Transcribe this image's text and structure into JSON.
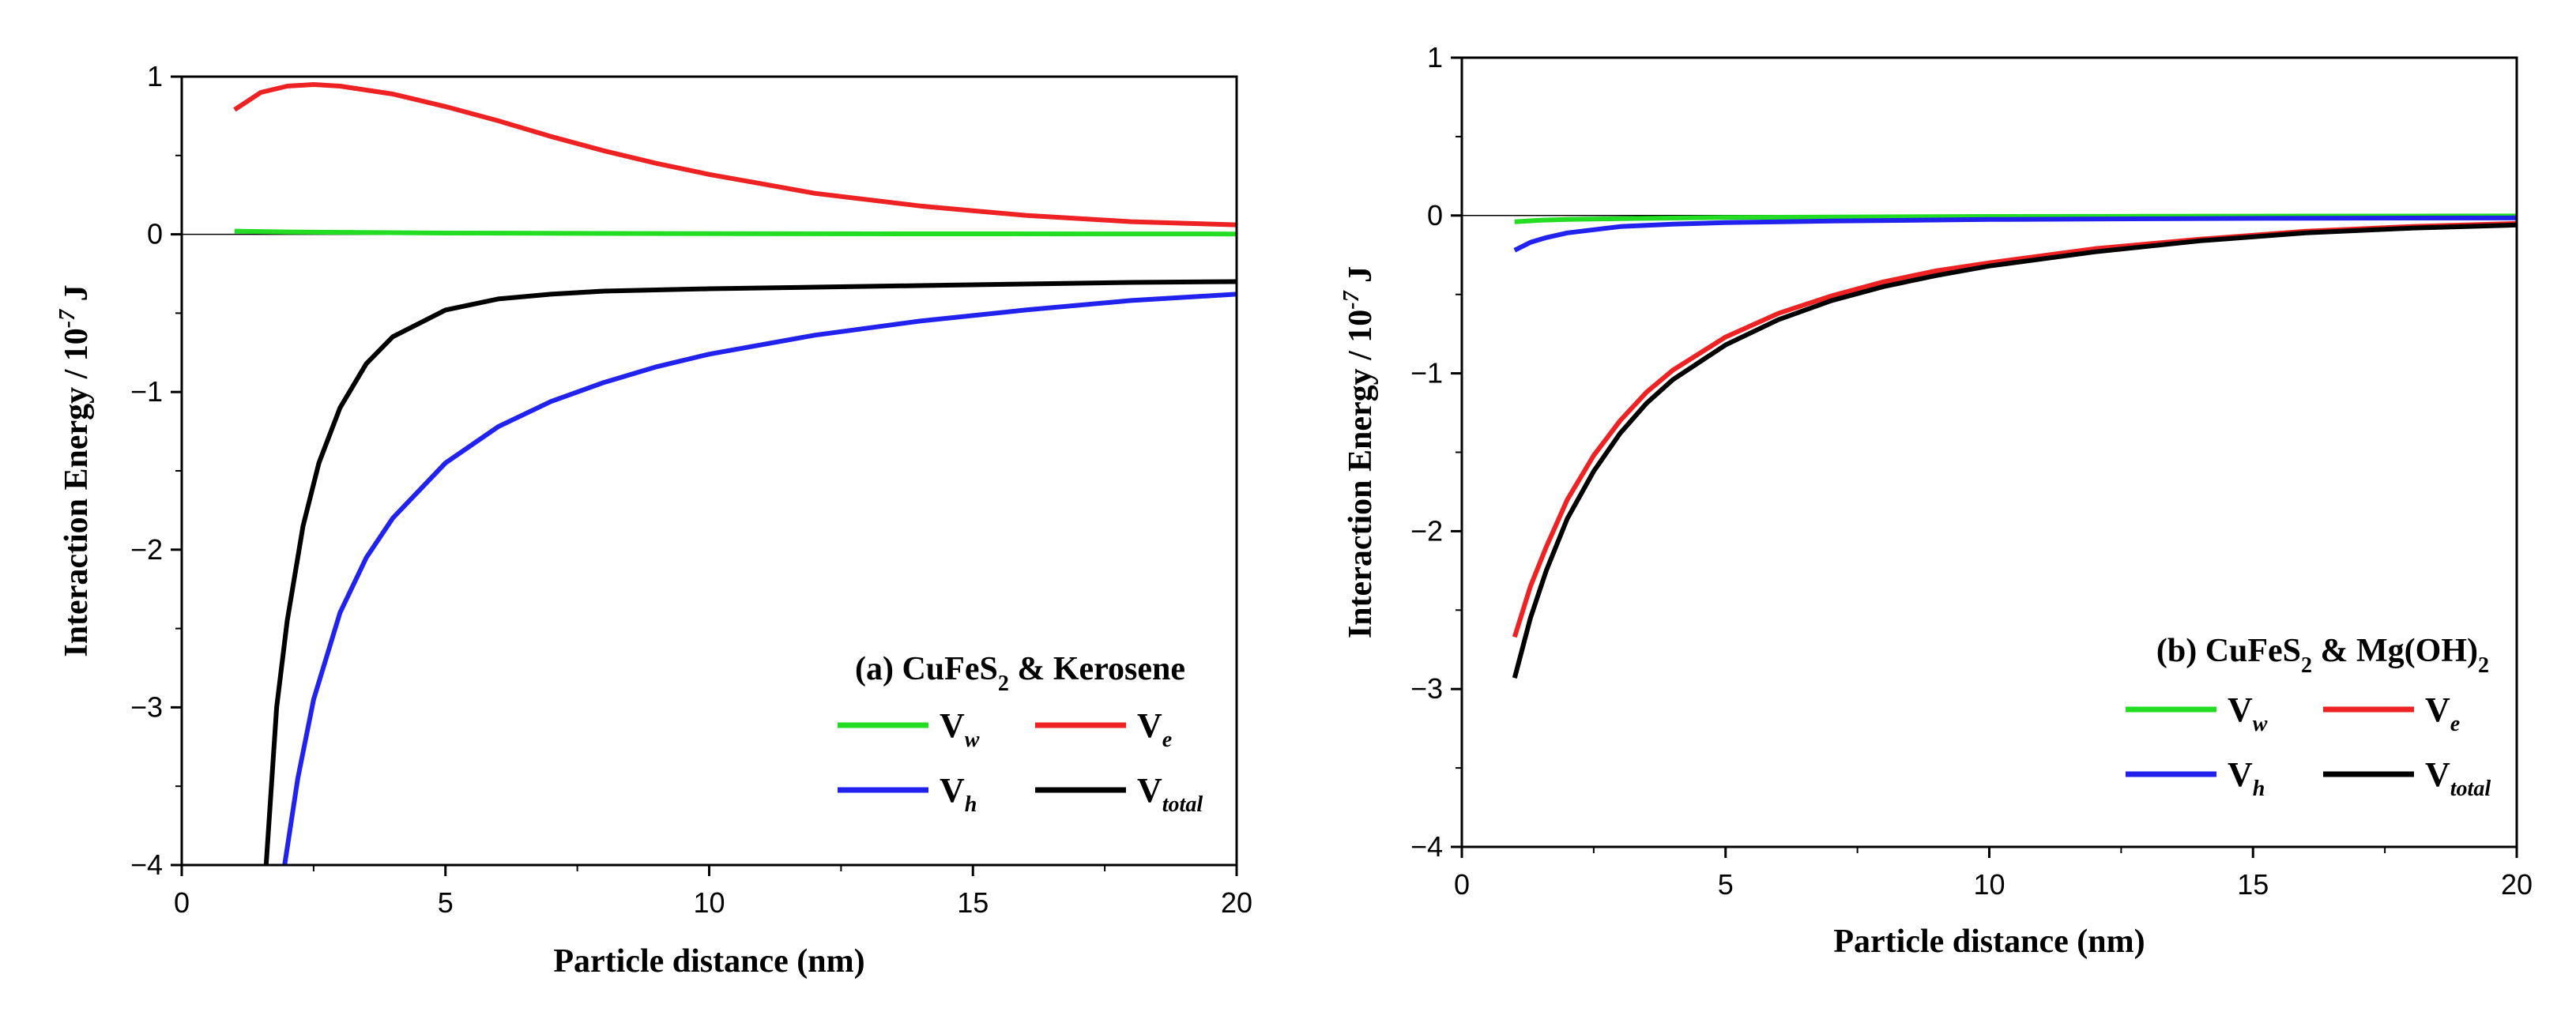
{
  "chart_data": [
    {
      "type": "line",
      "title": "(a) CuFeS",
      "title_sub": "2",
      "title_suffix": " & Kerosene",
      "xlabel": "Particle distance (nm)",
      "ylabel": "Interaction Energy / 10",
      "ylabel_sup": "-7",
      "ylabel_unit": " J",
      "xlim": [
        0,
        20
      ],
      "ylim": [
        -4,
        1
      ],
      "xticks": [
        0,
        5,
        10,
        15,
        20
      ],
      "yticks": [
        -4,
        -3,
        -2,
        -1,
        0,
        1
      ],
      "xtick_labels": [
        "0",
        "5",
        "10",
        "15",
        "20"
      ],
      "ytick_labels": [
        "−4",
        "−3",
        "−2",
        "−1",
        "0",
        "1"
      ],
      "legend_position": "bottom-right",
      "series": [
        {
          "name": "V",
          "sub": "w",
          "color": "#22dd22",
          "x": [
            1,
            2,
            5,
            10,
            15,
            20
          ],
          "y": [
            0.02,
            0.015,
            0.008,
            0.004,
            0.003,
            0.002
          ]
        },
        {
          "name": "V",
          "sub": "e",
          "color": "#ee2222",
          "x": [
            1,
            1.5,
            2,
            2.5,
            3,
            4,
            5,
            6,
            7,
            8,
            9,
            10,
            11,
            12,
            13,
            14,
            15,
            16,
            17,
            18,
            19,
            20
          ],
          "y": [
            0.79,
            0.9,
            0.94,
            0.95,
            0.94,
            0.89,
            0.81,
            0.72,
            0.62,
            0.53,
            0.45,
            0.38,
            0.32,
            0.26,
            0.22,
            0.18,
            0.15,
            0.12,
            0.1,
            0.08,
            0.07,
            0.06
          ]
        },
        {
          "name": "V",
          "sub": "h",
          "color": "#2222ee",
          "x": [
            1.95,
            2.2,
            2.5,
            3,
            3.5,
            4,
            5,
            6,
            7,
            8,
            9,
            10,
            12,
            14,
            16,
            18,
            20
          ],
          "y": [
            -4.0,
            -3.45,
            -2.95,
            -2.4,
            -2.05,
            -1.8,
            -1.45,
            -1.22,
            -1.06,
            -0.94,
            -0.84,
            -0.76,
            -0.64,
            -0.55,
            -0.48,
            -0.42,
            -0.38
          ]
        },
        {
          "name": "V",
          "sub": "total",
          "color": "#000000",
          "x": [
            1.6,
            1.8,
            2,
            2.3,
            2.6,
            3,
            3.5,
            4,
            5,
            6,
            7,
            8,
            10,
            12,
            14,
            16,
            18,
            20
          ],
          "y": [
            -4.0,
            -3.0,
            -2.45,
            -1.85,
            -1.45,
            -1.1,
            -0.82,
            -0.65,
            -0.48,
            -0.41,
            -0.38,
            -0.36,
            -0.345,
            -0.335,
            -0.325,
            -0.315,
            -0.305,
            -0.3
          ]
        }
      ]
    },
    {
      "type": "line",
      "title": "(b) CuFeS",
      "title_sub": "2",
      "title_suffix": " & Mg(OH)",
      "title_suffix_sub": "2",
      "xlabel": "Particle distance (nm)",
      "ylabel": "Interaction Energy / 10",
      "ylabel_sup": "-7",
      "ylabel_unit": " J",
      "xlim": [
        0,
        20
      ],
      "ylim": [
        -4,
        1
      ],
      "xticks": [
        0,
        5,
        10,
        15,
        20
      ],
      "yticks": [
        -4,
        -3,
        -2,
        -1,
        0,
        1
      ],
      "xtick_labels": [
        "0",
        "5",
        "10",
        "15",
        "20"
      ],
      "ytick_labels": [
        "−4",
        "−3",
        "−2",
        "−1",
        "0",
        "1"
      ],
      "legend_position": "bottom-right",
      "series": [
        {
          "name": "V",
          "sub": "w",
          "color": "#22dd22",
          "x": [
            1,
            1.5,
            2,
            3,
            5,
            10,
            15,
            20
          ],
          "y": [
            -0.04,
            -0.03,
            -0.025,
            -0.02,
            -0.012,
            -0.006,
            -0.004,
            -0.003
          ]
        },
        {
          "name": "V",
          "sub": "e",
          "color": "#ee2222",
          "x": [
            1,
            1.3,
            1.6,
            2,
            2.5,
            3,
            3.5,
            4,
            5,
            6,
            7,
            8,
            9,
            10,
            12,
            14,
            16,
            18,
            20
          ],
          "y": [
            -2.67,
            -2.35,
            -2.1,
            -1.8,
            -1.52,
            -1.3,
            -1.12,
            -0.98,
            -0.77,
            -0.62,
            -0.51,
            -0.42,
            -0.35,
            -0.3,
            -0.21,
            -0.15,
            -0.1,
            -0.07,
            -0.05
          ]
        },
        {
          "name": "V",
          "sub": "h",
          "color": "#2222ee",
          "x": [
            1,
            1.3,
            1.6,
            2,
            2.5,
            3,
            4,
            5,
            7,
            10,
            15,
            20
          ],
          "y": [
            -0.22,
            -0.17,
            -0.14,
            -0.11,
            -0.09,
            -0.07,
            -0.055,
            -0.045,
            -0.035,
            -0.025,
            -0.018,
            -0.015
          ]
        },
        {
          "name": "V",
          "sub": "total",
          "color": "#000000",
          "x": [
            1,
            1.3,
            1.6,
            2,
            2.5,
            3,
            3.5,
            4,
            5,
            6,
            7,
            8,
            9,
            10,
            12,
            14,
            16,
            18,
            20
          ],
          "y": [
            -2.93,
            -2.55,
            -2.25,
            -1.92,
            -1.62,
            -1.38,
            -1.19,
            -1.04,
            -0.82,
            -0.66,
            -0.54,
            -0.45,
            -0.38,
            -0.32,
            -0.23,
            -0.16,
            -0.11,
            -0.08,
            -0.06
          ]
        }
      ]
    }
  ]
}
